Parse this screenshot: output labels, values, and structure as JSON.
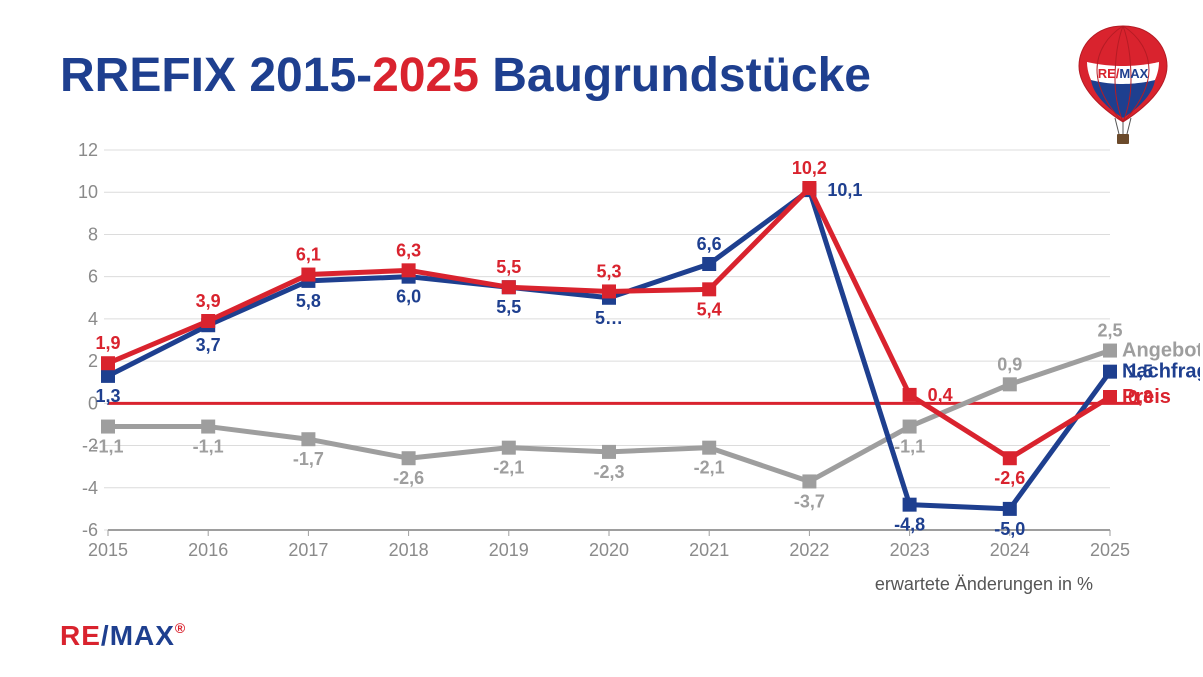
{
  "title": {
    "part1": "RREFIX 2015-",
    "part2": "2025",
    "part3": "   Baugrundstücke",
    "color1": "#1e3f8f",
    "color2": "#d9232e"
  },
  "brand": {
    "re": "RE",
    "slash": "/",
    "max": "MAX",
    "registered": "®",
    "re_color": "#d9232e",
    "slash_color": "#1e3f8f",
    "max_color": "#1e3f8f"
  },
  "footnote": "erwartete Änderungen in %",
  "chart": {
    "type": "line",
    "background_color": "#ffffff",
    "grid_color": "#dcdcdc",
    "zero_line_color": "#d9232e",
    "axis_line_color": "#9e9e9e",
    "tick_font_color": "#8a8a8a",
    "tick_fontsize": 18,
    "label_fontsize": 18,
    "ylim": [
      -6,
      12
    ],
    "ytick_step": 2,
    "yticks": [
      -6,
      -4,
      -2,
      0,
      2,
      4,
      6,
      8,
      10,
      12
    ],
    "categories": [
      "2015",
      "2016",
      "2017",
      "2018",
      "2019",
      "2020",
      "2021",
      "2022",
      "2023",
      "2024",
      "2025"
    ],
    "line_width": 5,
    "marker_size": 14,
    "marker_shape": "square",
    "series": [
      {
        "name": "Angebot",
        "color": "#9e9e9e",
        "values": [
          -1.1,
          -1.1,
          -1.7,
          -2.6,
          -2.1,
          -2.3,
          -2.1,
          -3.7,
          -1.1,
          0.9,
          2.5
        ],
        "labels": [
          "-1,1",
          "-1,1",
          "-1,7",
          "-2,6",
          "-2,1",
          "-2,3",
          "-2,1",
          "-3,7",
          "-1,1",
          "0,9",
          "2,5"
        ],
        "label_pos": [
          "below",
          "below",
          "below",
          "below",
          "below",
          "below",
          "below",
          "below",
          "below",
          "above",
          "above"
        ]
      },
      {
        "name": "Nachfrage",
        "color": "#1e3f8f",
        "values": [
          1.3,
          3.7,
          5.8,
          6.0,
          5.5,
          5.0,
          6.6,
          10.1,
          -4.8,
          -5.0,
          1.5
        ],
        "labels": [
          "1,3",
          "3,7",
          "5,8",
          "6,0",
          "5,5",
          "5…",
          "6,6",
          "10,1",
          "-4,8",
          "-5,0",
          "1,5"
        ],
        "label_pos": [
          "below",
          "below",
          "below",
          "below",
          "below",
          "below",
          "above",
          "right",
          "below",
          "below",
          "right"
        ]
      },
      {
        "name": "Preis",
        "color": "#d9232e",
        "values": [
          1.9,
          3.9,
          6.1,
          6.3,
          5.5,
          5.3,
          5.4,
          10.2,
          0.4,
          -2.6,
          0.3
        ],
        "labels": [
          "1,9",
          "3,9",
          "6,1",
          "6,3",
          "5,5",
          "5,3",
          "5,4",
          "10,2",
          "0,4",
          "-2,6",
          "0,3"
        ],
        "label_pos": [
          "above",
          "above",
          "above",
          "above",
          "above",
          "above",
          "below",
          "above",
          "right",
          "below",
          "right"
        ]
      }
    ],
    "legend": {
      "entries": [
        {
          "name": "Angebot",
          "color": "#9e9e9e"
        },
        {
          "name": "Nachfrage",
          "color": "#1e3f8f"
        },
        {
          "name": "Preis",
          "color": "#d9232e"
        }
      ]
    }
  }
}
